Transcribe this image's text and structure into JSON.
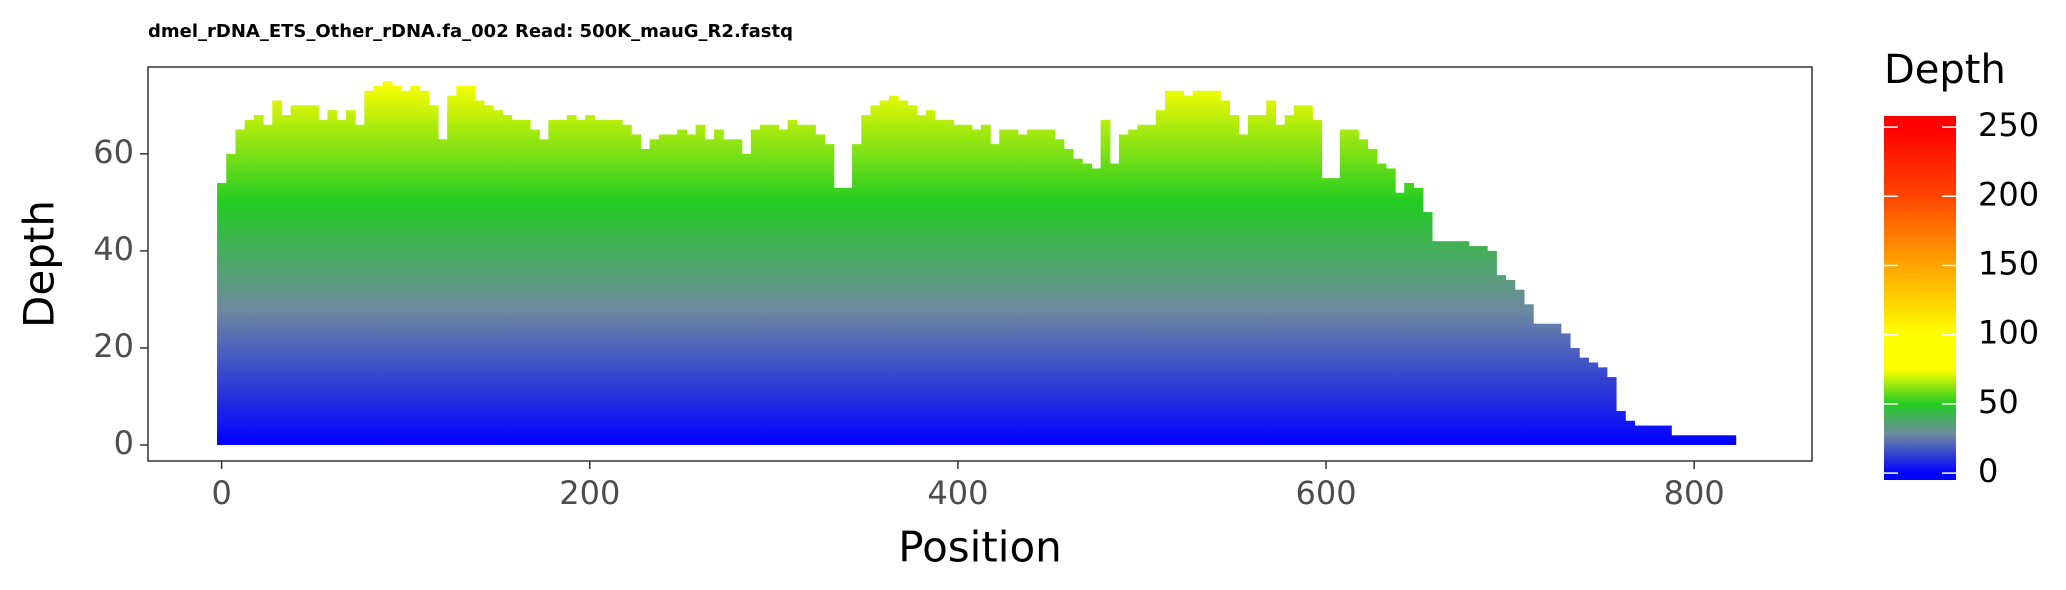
{
  "chart_data": {
    "type": "bar",
    "title": "dmel_rDNA_ETS_Other_rDNA.fa_002 Read: 500K_mauG_R2.fastq",
    "x_label": "Position",
    "y_label": "Depth",
    "legend_title": "Depth",
    "x": [
      0,
      5,
      10,
      15,
      20,
      25,
      30,
      35,
      40,
      45,
      50,
      55,
      60,
      65,
      70,
      75,
      80,
      85,
      90,
      95,
      100,
      105,
      110,
      115,
      120,
      125,
      130,
      135,
      140,
      145,
      150,
      155,
      160,
      165,
      170,
      175,
      180,
      185,
      190,
      195,
      200,
      205,
      210,
      215,
      220,
      225,
      230,
      235,
      240,
      245,
      250,
      255,
      260,
      265,
      270,
      275,
      280,
      285,
      290,
      295,
      300,
      305,
      310,
      315,
      320,
      325,
      330,
      335,
      340,
      345,
      350,
      355,
      360,
      365,
      370,
      375,
      380,
      385,
      390,
      395,
      400,
      405,
      410,
      415,
      420,
      425,
      430,
      435,
      440,
      445,
      450,
      455,
      460,
      465,
      470,
      475,
      480,
      485,
      490,
      495,
      500,
      505,
      510,
      515,
      520,
      525,
      530,
      535,
      540,
      545,
      550,
      555,
      560,
      565,
      570,
      575,
      580,
      585,
      590,
      595,
      600,
      605,
      610,
      615,
      620,
      625,
      630,
      635,
      640,
      645,
      650,
      655,
      660,
      665,
      670,
      675,
      680,
      685,
      690,
      695,
      700,
      705,
      710,
      715,
      720,
      725,
      730,
      735,
      740,
      745,
      750,
      755,
      760,
      765,
      770,
      775,
      780,
      785,
      790,
      795,
      800,
      805,
      810,
      815,
      820
    ],
    "values": [
      54,
      60,
      65,
      67,
      68,
      66,
      71,
      68,
      70,
      70,
      70,
      67,
      69,
      67,
      69,
      66,
      73,
      74,
      75,
      74,
      73,
      74,
      73,
      70,
      63,
      72,
      74,
      74,
      71,
      70,
      69,
      68,
      67,
      67,
      65,
      63,
      67,
      67,
      68,
      67,
      68,
      67,
      67,
      67,
      66,
      64,
      61,
      63,
      64,
      64,
      65,
      64,
      66,
      63,
      65,
      63,
      63,
      60,
      65,
      66,
      66,
      65,
      67,
      66,
      66,
      64,
      62,
      53,
      53,
      62,
      68,
      70,
      71,
      72,
      71,
      70,
      68,
      69,
      67,
      67,
      66,
      66,
      65,
      66,
      62,
      65,
      65,
      64,
      65,
      65,
      65,
      63,
      61,
      59,
      58,
      57,
      67,
      58,
      64,
      65,
      66,
      66,
      69,
      73,
      73,
      72,
      73,
      73,
      73,
      71,
      68,
      64,
      68,
      68,
      71,
      66,
      68,
      70,
      70,
      67,
      55,
      55,
      65,
      65,
      63,
      61,
      58,
      57,
      52,
      54,
      53,
      48,
      42,
      42,
      42,
      42,
      41,
      41,
      40,
      35,
      34,
      32,
      29,
      25,
      25,
      25,
      23,
      20,
      18,
      17,
      16,
      14,
      7,
      5,
      4,
      4,
      4,
      4,
      2,
      2,
      2,
      2,
      2,
      2,
      2
    ],
    "xlim": [
      -40,
      864
    ],
    "ylim": [
      -3.3,
      77.9
    ],
    "xticks": [
      0,
      200,
      400,
      600,
      800
    ],
    "yticks": [
      0,
      20,
      40,
      60
    ],
    "grid": false,
    "colorscale": [
      [
        0,
        "#0000ff"
      ],
      [
        28,
        "#6e8aa0"
      ],
      [
        50,
        "#22cc22"
      ],
      [
        75,
        "#ffff00"
      ],
      [
        100,
        "#ffff00"
      ],
      [
        150,
        "#ffa500"
      ],
      [
        200,
        "#ff4500"
      ],
      [
        250,
        "#ff0000"
      ]
    ],
    "colorlim": [
      -5,
      258
    ],
    "colorticks": [
      0,
      50,
      100,
      150,
      200,
      250
    ]
  }
}
